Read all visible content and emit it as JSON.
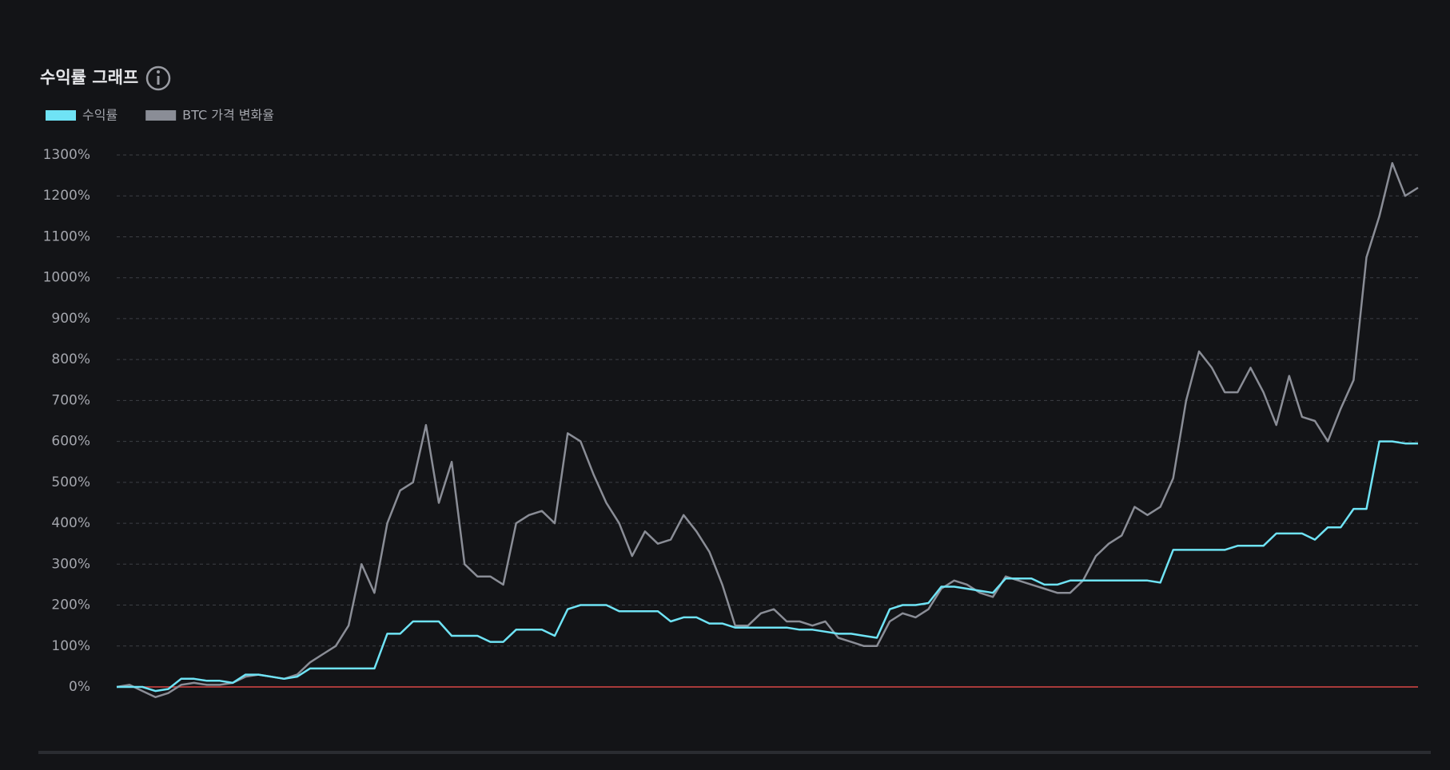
{
  "chart_data": {
    "type": "line",
    "title": "수익률 그래프",
    "series": [
      {
        "name": "수익률",
        "color": "#6fe3f5",
        "values": [
          0,
          0,
          0,
          -10,
          -5,
          20,
          20,
          15,
          15,
          10,
          30,
          30,
          25,
          20,
          25,
          45,
          45,
          45,
          45,
          45,
          45,
          130,
          130,
          160,
          160,
          160,
          125,
          125,
          125,
          110,
          110,
          140,
          140,
          140,
          125,
          190,
          200,
          200,
          200,
          185,
          185,
          185,
          185,
          160,
          170,
          170,
          155,
          155,
          145,
          145,
          145,
          145,
          145,
          140,
          140,
          135,
          130,
          130,
          125,
          120,
          190,
          200,
          200,
          205,
          245,
          245,
          240,
          235,
          230,
          265,
          265,
          265,
          250,
          250,
          260,
          260,
          260,
          260,
          260,
          260,
          260,
          255,
          335,
          335,
          335,
          335,
          335,
          345,
          345,
          345,
          375,
          375,
          375,
          360,
          390,
          390,
          435,
          435,
          600,
          600,
          595,
          595
        ]
      },
      {
        "name": "BTC 가격 변화율",
        "color": "#8a8d96",
        "values": [
          0,
          5,
          -10,
          -25,
          -15,
          5,
          10,
          5,
          5,
          10,
          25,
          30,
          25,
          20,
          30,
          60,
          80,
          100,
          150,
          300,
          230,
          400,
          480,
          500,
          640,
          450,
          550,
          300,
          270,
          270,
          250,
          400,
          420,
          430,
          400,
          620,
          600,
          520,
          450,
          400,
          320,
          380,
          350,
          360,
          420,
          380,
          330,
          250,
          150,
          150,
          180,
          190,
          160,
          160,
          150,
          160,
          120,
          110,
          100,
          100,
          160,
          180,
          170,
          190,
          240,
          260,
          250,
          230,
          220,
          270,
          260,
          250,
          240,
          230,
          230,
          260,
          320,
          350,
          370,
          440,
          420,
          440,
          510,
          700,
          820,
          780,
          720,
          720,
          780,
          720,
          640,
          760,
          660,
          650,
          600,
          680,
          750,
          1050,
          1150,
          1280,
          1200,
          1220
        ]
      }
    ],
    "ylim": [
      -80,
      1340
    ],
    "yticks": [
      {
        "value": 0,
        "label": "0%"
      },
      {
        "value": 100,
        "label": "100%"
      },
      {
        "value": 200,
        "label": "200%"
      },
      {
        "value": 300,
        "label": "300%"
      },
      {
        "value": 400,
        "label": "400%"
      },
      {
        "value": 500,
        "label": "500%"
      },
      {
        "value": 600,
        "label": "600%"
      },
      {
        "value": 700,
        "label": "700%"
      },
      {
        "value": 800,
        "label": "800%"
      },
      {
        "value": 900,
        "label": "900%"
      },
      {
        "value": 1000,
        "label": "1000%"
      },
      {
        "value": 1100,
        "label": "1100%"
      },
      {
        "value": 1200,
        "label": "1200%"
      },
      {
        "value": 1300,
        "label": "1300%"
      }
    ],
    "grid": true,
    "zero_line_color": "#a83a3a",
    "legend": "top-left"
  }
}
